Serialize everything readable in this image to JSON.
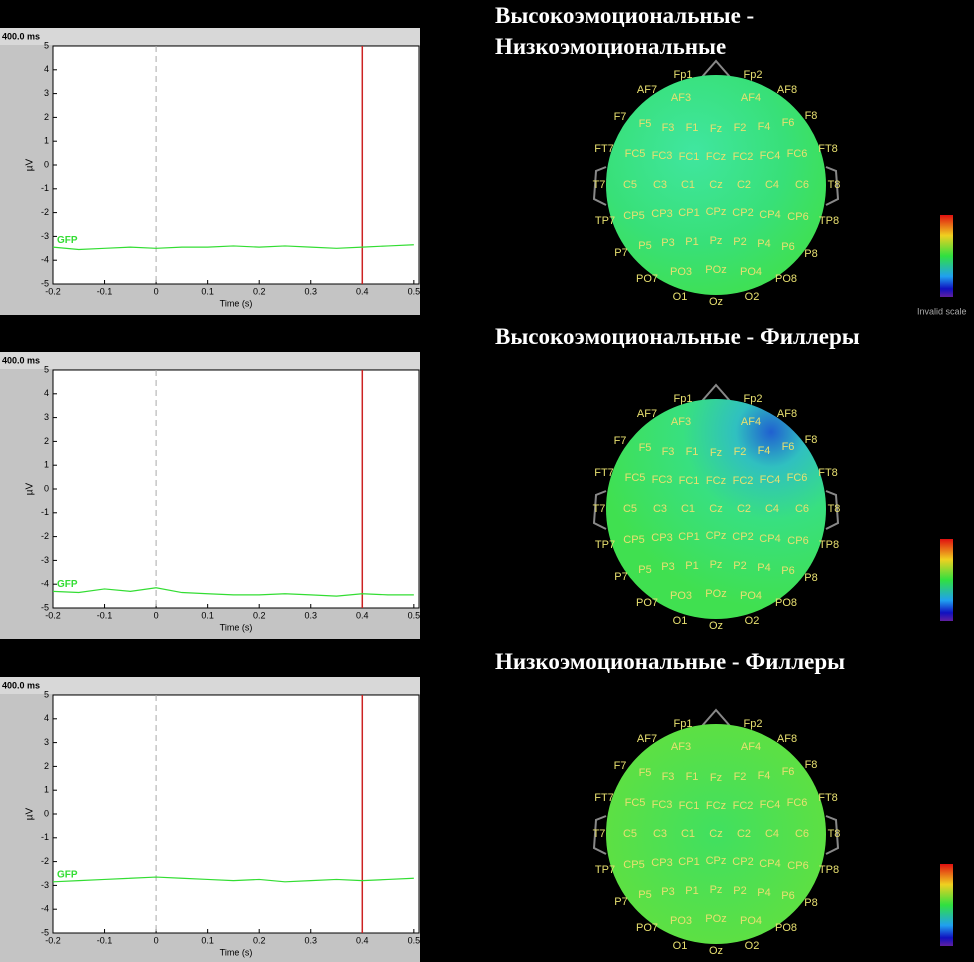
{
  "chart_data": [
    {
      "type": "line",
      "title": "Высокоэмоциональные - Низкоэмоциональные",
      "annotation": "400.0 ms",
      "xlabel": "Time (s)",
      "ylabel": "µV",
      "xlim": [
        -0.2,
        0.51
      ],
      "ylim": [
        -5,
        5
      ],
      "xticks": [
        -0.2,
        -0.1,
        0,
        0.1,
        0.2,
        0.3,
        0.4,
        0.5
      ],
      "yticks": [
        -5,
        -4,
        -3,
        -2,
        -1,
        0,
        1,
        2,
        3,
        4,
        5
      ],
      "x": [
        -0.2,
        -0.15,
        -0.1,
        -0.05,
        0,
        0.05,
        0.1,
        0.15,
        0.2,
        0.25,
        0.3,
        0.35,
        0.4,
        0.45,
        0.5
      ],
      "series": [
        {
          "name": "GFP",
          "color": "#33dd33",
          "values": [
            -3.45,
            -3.55,
            -3.5,
            -3.45,
            -3.5,
            -3.45,
            -3.45,
            -3.4,
            -3.45,
            -3.4,
            -3.45,
            -3.5,
            -3.45,
            -3.4,
            -3.35
          ]
        }
      ],
      "cursor_x": 0.4,
      "cursor_color": "#cc2222"
    },
    {
      "type": "line",
      "title": "Высокоэмоциональные - Филлеры",
      "annotation": "400.0 ms",
      "xlabel": "Time (s)",
      "ylabel": "µV",
      "xlim": [
        -0.2,
        0.51
      ],
      "ylim": [
        -5,
        5
      ],
      "xticks": [
        -0.2,
        -0.1,
        0,
        0.1,
        0.2,
        0.3,
        0.4,
        0.5
      ],
      "yticks": [
        -5,
        -4,
        -3,
        -2,
        -1,
        0,
        1,
        2,
        3,
        4,
        5
      ],
      "x": [
        -0.2,
        -0.15,
        -0.1,
        -0.05,
        0,
        0.05,
        0.1,
        0.15,
        0.2,
        0.25,
        0.3,
        0.35,
        0.4,
        0.45,
        0.5
      ],
      "series": [
        {
          "name": "GFP",
          "color": "#33dd33",
          "values": [
            -4.3,
            -4.35,
            -4.2,
            -4.3,
            -4.15,
            -4.35,
            -4.4,
            -4.45,
            -4.45,
            -4.4,
            -4.45,
            -4.5,
            -4.4,
            -4.45,
            -4.45
          ]
        }
      ],
      "cursor_x": 0.4,
      "cursor_color": "#cc2222"
    },
    {
      "type": "line",
      "title": "Низкоэмоциональные - Филлеры",
      "annotation": "400.0 ms",
      "xlabel": "Time (s)",
      "ylabel": "µV",
      "xlim": [
        -0.2,
        0.51
      ],
      "ylim": [
        -5,
        5
      ],
      "xticks": [
        -0.2,
        -0.1,
        0,
        0.1,
        0.2,
        0.3,
        0.4,
        0.5
      ],
      "yticks": [
        -5,
        -4,
        -3,
        -2,
        -1,
        0,
        1,
        2,
        3,
        4,
        5
      ],
      "x": [
        -0.2,
        -0.15,
        -0.1,
        -0.05,
        0,
        0.05,
        0.1,
        0.15,
        0.2,
        0.25,
        0.3,
        0.35,
        0.4,
        0.45,
        0.5
      ],
      "series": [
        {
          "name": "GFP",
          "color": "#33dd33",
          "values": [
            -2.85,
            -2.8,
            -2.75,
            -2.7,
            -2.65,
            -2.7,
            -2.75,
            -2.8,
            -2.75,
            -2.85,
            -2.8,
            -2.75,
            -2.8,
            -2.75,
            -2.7
          ]
        }
      ],
      "cursor_x": 0.4,
      "cursor_color": "#cc2222"
    }
  ],
  "electrodes": [
    "Fp1",
    "Fp2",
    "AF7",
    "AF3",
    "AF4",
    "AF8",
    "F7",
    "F5",
    "F3",
    "F1",
    "Fz",
    "F2",
    "F4",
    "F6",
    "F8",
    "FT7",
    "FC5",
    "FC3",
    "FC1",
    "FCz",
    "FC2",
    "FC4",
    "FC6",
    "FT8",
    "T7",
    "C5",
    "C3",
    "C1",
    "Cz",
    "C2",
    "C4",
    "C6",
    "T8",
    "TP7",
    "CP5",
    "CP3",
    "CP1",
    "CPz",
    "CP2",
    "CP4",
    "CP6",
    "TP8",
    "P7",
    "P5",
    "P3",
    "P1",
    "Pz",
    "P2",
    "P4",
    "P6",
    "P8",
    "PO7",
    "PO3",
    "POz",
    "PO4",
    "PO8",
    "O1",
    "Oz",
    "O2"
  ],
  "scale_note": "Invalid scale"
}
